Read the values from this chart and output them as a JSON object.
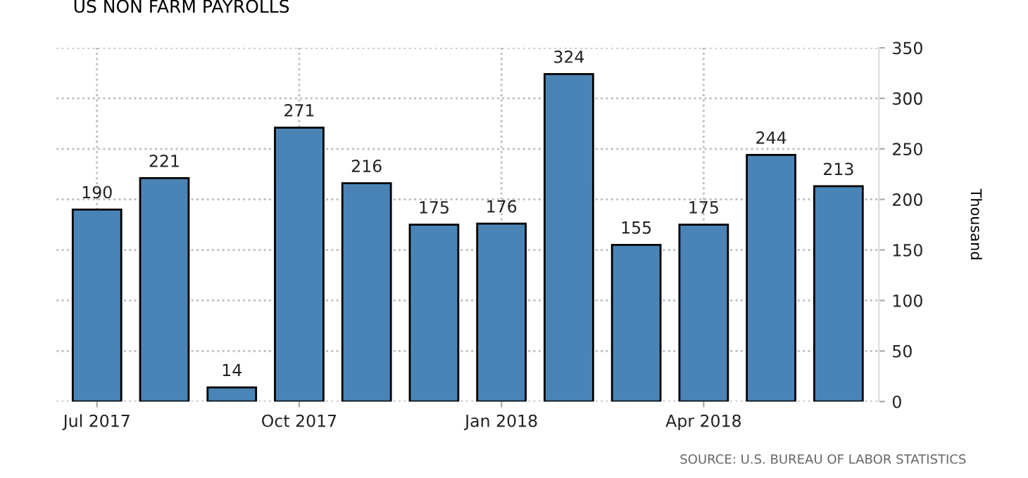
{
  "chart_data": {
    "type": "bar",
    "title": "US NON FARM PAYROLLS",
    "ylabel": "Thousand",
    "categories": [
      "Jul 2017",
      null,
      null,
      "Oct 2017",
      null,
      null,
      "Jan 2018",
      null,
      null,
      "Apr 2018",
      null,
      null
    ],
    "values": [
      190,
      221,
      14,
      271,
      216,
      175,
      176,
      324,
      155,
      175,
      244,
      213
    ],
    "color": "#4a84b6",
    "data_labels": true,
    "ylim": [
      0,
      350
    ],
    "yticks": [
      0,
      50,
      100,
      150,
      200,
      250,
      300,
      350
    ],
    "grid": true,
    "annotations": [
      "SOURCE: U.S. BUREAU OF LABOR STATISTICS"
    ]
  }
}
